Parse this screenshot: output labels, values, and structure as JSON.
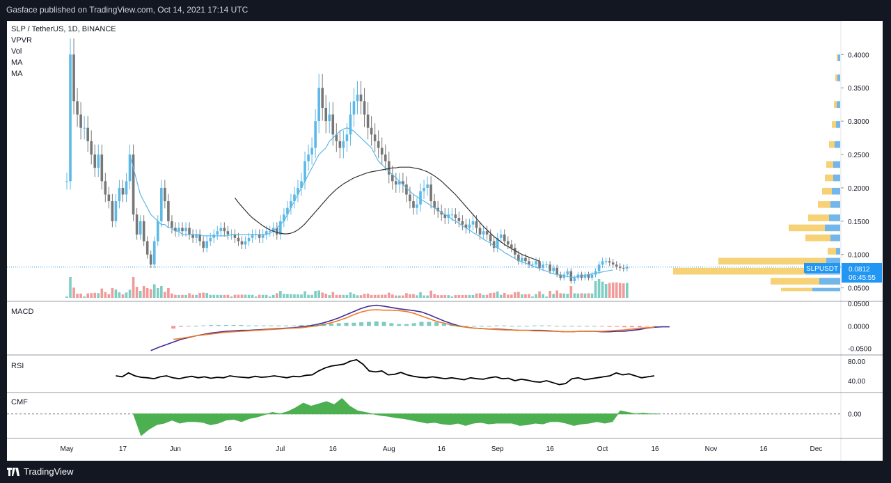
{
  "header": {
    "published": "Gasface published on TradingView.com, Oct 14, 2021 17:14 UTC"
  },
  "footer": {
    "brand": "TradingView"
  },
  "chart_data": [
    {
      "id": "price",
      "type": "candlestick",
      "title": "SLP / TetherUS, 1D, BINANCE",
      "legend": [
        "VPVR",
        "Vol",
        "MA",
        "MA"
      ],
      "ylim": [
        0.035,
        0.44
      ],
      "yticks": [
        "0.4000",
        "0.3500",
        "0.3000",
        "0.2500",
        "0.2000",
        "0.1500",
        "0.1000",
        "0.0500"
      ],
      "ytick_values": [
        0.4,
        0.35,
        0.3,
        0.25,
        0.2,
        0.15,
        0.1,
        0.05
      ],
      "xtick_labels": [
        "May",
        "17",
        "Jun",
        "16",
        "Jul",
        "16",
        "Aug",
        "16",
        "Sep",
        "16",
        "Oct",
        "16",
        "Nov",
        "16",
        "Dec"
      ],
      "xtick_days": [
        0,
        16,
        31,
        46,
        61,
        76,
        92,
        107,
        123,
        138,
        153,
        168,
        184,
        199,
        214
      ],
      "last_price": "0.0812",
      "last_price_value": 0.0812,
      "symbol_tag": "SLPUSDT",
      "countdown": "06:45:55",
      "up_color": "#5cb8e6",
      "down_color": "#777777",
      "closes": [
        0.21,
        0.4,
        0.33,
        0.31,
        0.29,
        0.29,
        0.27,
        0.25,
        0.23,
        0.25,
        0.21,
        0.19,
        0.18,
        0.15,
        0.18,
        0.2,
        0.19,
        0.21,
        0.25,
        0.16,
        0.13,
        0.15,
        0.12,
        0.1,
        0.085,
        0.12,
        0.15,
        0.2,
        0.18,
        0.15,
        0.14,
        0.135,
        0.14,
        0.135,
        0.14,
        0.13,
        0.125,
        0.13,
        0.12,
        0.11,
        0.12,
        0.125,
        0.13,
        0.135,
        0.14,
        0.135,
        0.13,
        0.13,
        0.125,
        0.12,
        0.115,
        0.12,
        0.125,
        0.13,
        0.13,
        0.125,
        0.13,
        0.135,
        0.135,
        0.14,
        0.13,
        0.15,
        0.16,
        0.17,
        0.18,
        0.19,
        0.2,
        0.21,
        0.24,
        0.25,
        0.26,
        0.3,
        0.35,
        0.32,
        0.3,
        0.31,
        0.28,
        0.27,
        0.26,
        0.27,
        0.28,
        0.31,
        0.33,
        0.34,
        0.33,
        0.31,
        0.29,
        0.28,
        0.27,
        0.26,
        0.25,
        0.24,
        0.22,
        0.21,
        0.205,
        0.21,
        0.205,
        0.19,
        0.18,
        0.17,
        0.175,
        0.195,
        0.2,
        0.205,
        0.18,
        0.17,
        0.165,
        0.16,
        0.155,
        0.16,
        0.16,
        0.155,
        0.15,
        0.145,
        0.14,
        0.145,
        0.15,
        0.14,
        0.13,
        0.135,
        0.13,
        0.12,
        0.11,
        0.125,
        0.13,
        0.12,
        0.115,
        0.11,
        0.1,
        0.09,
        0.095,
        0.09,
        0.085,
        0.085,
        0.09,
        0.08,
        0.085,
        0.085,
        0.075,
        0.08,
        0.07,
        0.065,
        0.07,
        0.075,
        0.06,
        0.065,
        0.07,
        0.065,
        0.07,
        0.065,
        0.07,
        0.075,
        0.085,
        0.09,
        0.09,
        0.088,
        0.085,
        0.082,
        0.08,
        0.079,
        0.081
      ],
      "ma_short": [
        null,
        null,
        null,
        null,
        null,
        null,
        null,
        null,
        null,
        null,
        null,
        null,
        null,
        null,
        null,
        null,
        null,
        null,
        0.25,
        0.23,
        0.21,
        0.19,
        0.18,
        0.17,
        0.16,
        0.155,
        0.15,
        0.145,
        0.145,
        0.14,
        0.14,
        0.135,
        0.135,
        0.13,
        0.13,
        0.13,
        0.13,
        0.13,
        0.13,
        0.128,
        0.128,
        0.128,
        0.128,
        0.128,
        0.128,
        0.128,
        0.128,
        0.13,
        0.13,
        0.13,
        0.13,
        0.13,
        0.13,
        0.13,
        0.13,
        0.13,
        0.13,
        0.13,
        0.132,
        0.135,
        0.14,
        0.145,
        0.15,
        0.16,
        0.17,
        0.18,
        0.19,
        0.2,
        0.21,
        0.22,
        0.23,
        0.24,
        0.25,
        0.255,
        0.26,
        0.27,
        0.275,
        0.28,
        0.285,
        0.288,
        0.29,
        0.288,
        0.285,
        0.28,
        0.275,
        0.27,
        0.265,
        0.26,
        0.25,
        0.24,
        0.235,
        0.23,
        0.225,
        0.22,
        0.215,
        0.21,
        0.205,
        0.2,
        0.195,
        0.19,
        0.187,
        0.183,
        0.18,
        0.177,
        0.173,
        0.17,
        0.167,
        0.163,
        0.16,
        0.157,
        0.153,
        0.15,
        0.147,
        0.143,
        0.14,
        0.137,
        0.133,
        0.13,
        0.127,
        0.123,
        0.12,
        0.117,
        0.113,
        0.11,
        0.107,
        0.103,
        0.1,
        0.097,
        0.094,
        0.091,
        0.089,
        0.087,
        0.085,
        0.083,
        0.081,
        0.079,
        0.077,
        0.075,
        0.073,
        0.071,
        0.07,
        0.069,
        0.068,
        0.067,
        0.066,
        0.066,
        0.067,
        0.068,
        0.069,
        0.07,
        0.071,
        0.072,
        0.073,
        0.074,
        0.075,
        0.076,
        0.077
      ],
      "ma_long": [
        null,
        null,
        null,
        null,
        null,
        null,
        null,
        null,
        null,
        null,
        null,
        null,
        null,
        null,
        null,
        null,
        null,
        null,
        null,
        null,
        null,
        null,
        null,
        null,
        null,
        null,
        null,
        null,
        null,
        null,
        null,
        null,
        null,
        null,
        null,
        null,
        null,
        null,
        null,
        null,
        null,
        null,
        null,
        null,
        null,
        null,
        null,
        null,
        0.185,
        0.178,
        0.172,
        0.166,
        0.16,
        0.155,
        0.151,
        0.147,
        0.143,
        0.14,
        0.137,
        0.135,
        0.133,
        0.132,
        0.131,
        0.131,
        0.132,
        0.134,
        0.137,
        0.141,
        0.146,
        0.152,
        0.158,
        0.164,
        0.17,
        0.176,
        0.182,
        0.188,
        0.193,
        0.198,
        0.202,
        0.206,
        0.209,
        0.212,
        0.215,
        0.217,
        0.219,
        0.221,
        0.223,
        0.224,
        0.225,
        0.226,
        0.227,
        0.228,
        0.229,
        0.23,
        0.23,
        0.231,
        0.231,
        0.231,
        0.231,
        0.23,
        0.229,
        0.228,
        0.226,
        0.224,
        0.221,
        0.218,
        0.214,
        0.21,
        0.205,
        0.2,
        0.195,
        0.19,
        0.184,
        0.178,
        0.172,
        0.166,
        0.16,
        0.154,
        0.148,
        0.142,
        0.137,
        0.132,
        0.127,
        0.123,
        0.119,
        0.115,
        0.112,
        0.109,
        0.106,
        0.103,
        0.1,
        0.098,
        0.096,
        0.094,
        0.092,
        0.09
      ]
    },
    {
      "id": "macd",
      "type": "line",
      "title": "MACD",
      "ylim": [
        -0.06,
        0.05
      ],
      "yticks": [
        "0.0500",
        "0.0000",
        "-0.0500"
      ],
      "ytick_values": [
        0.05,
        0.0,
        -0.05
      ],
      "series": [
        {
          "color": "#3f2a9c",
          "values": [
            -0.055,
            -0.048,
            -0.042,
            -0.036,
            -0.03,
            -0.026,
            -0.022,
            -0.019,
            -0.016,
            -0.014,
            -0.012,
            -0.011,
            -0.01,
            -0.01,
            -0.009,
            -0.008,
            -0.007,
            -0.006,
            -0.005,
            -0.004,
            -0.002,
            0.0,
            0.003,
            0.007,
            0.012,
            0.018,
            0.025,
            0.032,
            0.039,
            0.044,
            0.046,
            0.044,
            0.041,
            0.038,
            0.036,
            0.034,
            0.031,
            0.025,
            0.018,
            0.011,
            0.005,
            0.0,
            -0.003,
            -0.005,
            -0.006,
            -0.007,
            -0.007,
            -0.008,
            -0.009,
            -0.01,
            -0.01,
            -0.01,
            -0.01,
            -0.011,
            -0.012,
            -0.013,
            -0.013,
            -0.012,
            -0.012,
            -0.012,
            -0.013,
            -0.013,
            -0.012,
            -0.012,
            -0.01,
            -0.008,
            -0.005,
            -0.003,
            -0.002,
            -0.002
          ]
        },
        {
          "color": "#f07b27",
          "values": [
            null,
            null,
            null,
            -0.03,
            -0.028,
            -0.025,
            -0.022,
            -0.02,
            -0.018,
            -0.016,
            -0.014,
            -0.013,
            -0.012,
            -0.011,
            -0.01,
            -0.009,
            -0.008,
            -0.007,
            -0.006,
            -0.005,
            -0.004,
            -0.002,
            0.0,
            0.003,
            0.007,
            0.012,
            0.018,
            0.025,
            0.031,
            0.035,
            0.036,
            0.035,
            0.035,
            0.034,
            0.032,
            0.028,
            0.022,
            0.016,
            0.01,
            0.006,
            0.002,
            -0.001,
            -0.003,
            -0.005,
            -0.006,
            -0.007,
            -0.008,
            -0.009,
            -0.009,
            -0.01,
            -0.01,
            -0.011,
            -0.011,
            -0.012,
            -0.012,
            -0.013,
            -0.013,
            -0.012,
            -0.012,
            -0.012,
            -0.012,
            -0.011,
            -0.01,
            -0.009,
            -0.007,
            -0.005,
            -0.004,
            -0.003
          ]
        }
      ]
    },
    {
      "id": "rsi",
      "type": "line",
      "title": "RSI",
      "ylim": [
        20,
        90
      ],
      "yticks": [
        "80.00",
        "40.00"
      ],
      "ytick_values": [
        80,
        40
      ],
      "series": [
        {
          "color": "#000000",
          "values": [
            50,
            48,
            56,
            50,
            47,
            46,
            44,
            48,
            50,
            46,
            44,
            47,
            49,
            46,
            48,
            45,
            47,
            46,
            50,
            48,
            47,
            46,
            49,
            47,
            48,
            50,
            48,
            46,
            49,
            48,
            51,
            52,
            60,
            66,
            70,
            72,
            74,
            80,
            83,
            74,
            60,
            58,
            60,
            52,
            53,
            57,
            52,
            49,
            47,
            46,
            48,
            46,
            44,
            46,
            44,
            42,
            46,
            44,
            43,
            46,
            48,
            44,
            45,
            40,
            43,
            41,
            38,
            37,
            40,
            36,
            32,
            34,
            44,
            46,
            42,
            44,
            46,
            48,
            50,
            56,
            52,
            54,
            50,
            46,
            48,
            50
          ]
        }
      ]
    },
    {
      "id": "cmf",
      "type": "area",
      "title": "CMF",
      "ylim": [
        -0.3,
        0.25
      ],
      "yticks": [
        "0.00"
      ],
      "ytick_values": [
        0
      ],
      "series": [
        {
          "color": "#4caf50",
          "values": [
            0.0,
            -0.28,
            -0.2,
            -0.14,
            -0.12,
            -0.08,
            -0.12,
            -0.1,
            -0.1,
            -0.11,
            -0.14,
            -0.12,
            -0.08,
            -0.07,
            -0.1,
            -0.06,
            -0.04,
            -0.01,
            0.02,
            0.0,
            0.03,
            0.08,
            0.14,
            0.1,
            0.13,
            0.16,
            0.12,
            0.2,
            0.1,
            0.04,
            0.02,
            0.0,
            -0.02,
            -0.03,
            -0.05,
            -0.06,
            -0.08,
            -0.1,
            -0.12,
            -0.11,
            -0.13,
            -0.14,
            -0.12,
            -0.15,
            -0.12,
            -0.11,
            -0.13,
            -0.12,
            -0.12,
            -0.12,
            -0.15,
            -0.14,
            -0.12,
            -0.13,
            -0.1,
            -0.1,
            -0.12,
            -0.15,
            -0.13,
            -0.12,
            -0.1,
            -0.12,
            -0.1,
            0.04,
            0.02,
            0.0,
            0.01,
            0.0,
            0.0
          ]
        }
      ]
    }
  ]
}
